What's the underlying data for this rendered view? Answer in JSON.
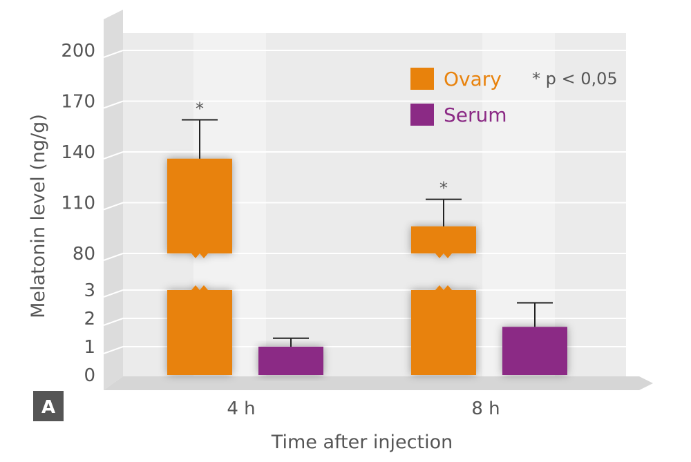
{
  "chart_data": {
    "type": "bar",
    "ylabel": "Melatonin level (ng/g)",
    "xlabel": "Time after injection",
    "categories": [
      "4 h",
      "8 h"
    ],
    "yticks": [
      "0",
      "1",
      "2",
      "3",
      "80",
      "110",
      "140",
      "170",
      "200"
    ],
    "axis_break": {
      "between": [
        3,
        80
      ]
    },
    "series": [
      {
        "name": "Ovary",
        "color": "#e8820c",
        "values": [
          136,
          96
        ],
        "errors": [
          23,
          16
        ],
        "significant": [
          true,
          true
        ]
      },
      {
        "name": "Serum",
        "color": "#8b2a85",
        "values": [
          1.0,
          1.7
        ],
        "errors": [
          0.3,
          0.85
        ],
        "significant": [
          false,
          false
        ]
      }
    ],
    "significance_marker": "*",
    "significance_note": "* p < 0,05",
    "panel_label": "A",
    "grid": true,
    "legend_position": "top-right"
  }
}
